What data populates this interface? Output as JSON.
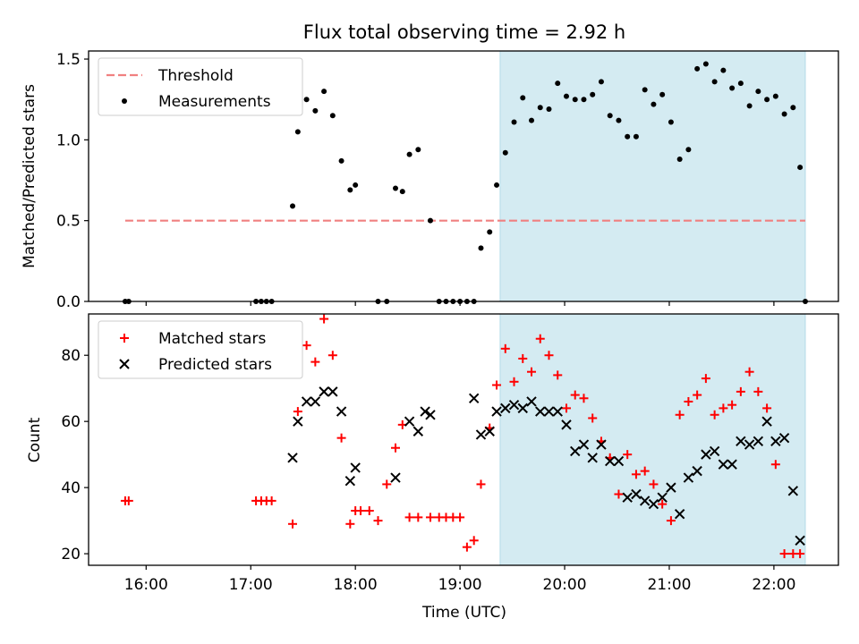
{
  "chart_data": [
    {
      "type": "scatter",
      "title": "Flux total observing time = 2.92 h",
      "xlabel": "",
      "ylabel": "Matched/Predicted stars",
      "xlim": [
        "15:27",
        "22:37"
      ],
      "ylim": [
        0,
        1.55
      ],
      "yticks": [
        "0.0",
        "0.5",
        "1.0",
        "1.5"
      ],
      "legend_position": "upper-left",
      "shaded_span": {
        "x_start": "19:23",
        "x_end": "22:18",
        "color": "#add8e6"
      },
      "threshold": {
        "name": "Threshold",
        "value": 0.5,
        "x_start": "15:48",
        "x_end": "22:18",
        "color": "#f08080"
      },
      "series": [
        {
          "name": "Measurements",
          "marker": "dot",
          "color": "#000000",
          "x": [
            "15:48",
            "15:50",
            "17:03",
            "17:06",
            "17:09",
            "17:12",
            "17:24",
            "17:27",
            "17:32",
            "17:37",
            "17:42",
            "17:47",
            "17:52",
            "17:57",
            "18:00",
            "18:13",
            "18:18",
            "18:23",
            "18:27",
            "18:31",
            "18:36",
            "18:43",
            "18:48",
            "18:52",
            "18:56",
            "19:00",
            "19:04",
            "19:08",
            "19:12",
            "19:17",
            "19:21",
            "19:26",
            "19:31",
            "19:36",
            "19:41",
            "19:46",
            "19:51",
            "19:56",
            "20:01",
            "20:06",
            "20:11",
            "20:16",
            "20:21",
            "20:26",
            "20:31",
            "20:36",
            "20:41",
            "20:46",
            "20:51",
            "20:56",
            "21:01",
            "21:06",
            "21:11",
            "21:16",
            "21:21",
            "21:26",
            "21:31",
            "21:36",
            "21:41",
            "21:46",
            "21:51",
            "21:56",
            "22:01",
            "22:06",
            "22:11",
            "22:15",
            "22:18"
          ],
          "y": [
            0.0,
            0.0,
            0.0,
            0.0,
            0.0,
            0.0,
            0.59,
            1.05,
            1.25,
            1.18,
            1.3,
            1.15,
            0.87,
            0.69,
            0.72,
            0.0,
            0.0,
            0.7,
            0.68,
            0.91,
            0.94,
            0.5,
            0.0,
            0.0,
            0.0,
            0.0,
            0.0,
            0.0,
            0.33,
            0.43,
            0.72,
            0.92,
            1.11,
            1.26,
            1.12,
            1.2,
            1.19,
            1.35,
            1.27,
            1.25,
            1.25,
            1.28,
            1.36,
            1.15,
            1.12,
            1.02,
            1.02,
            1.31,
            1.22,
            1.28,
            1.11,
            0.88,
            0.94,
            1.44,
            1.47,
            1.36,
            1.43,
            1.32,
            1.35,
            1.21,
            1.3,
            1.25,
            1.27,
            1.16,
            1.2,
            0.83,
            0.0
          ]
        }
      ]
    },
    {
      "type": "scatter",
      "title": "",
      "xlabel": "Time (UTC)",
      "ylabel": "Count",
      "xlim": [
        "15:27",
        "22:37"
      ],
      "ylim": [
        16.5,
        92.5
      ],
      "yticks": [
        "20",
        "40",
        "60",
        "80"
      ],
      "xticks": [
        "16:00",
        "17:00",
        "18:00",
        "19:00",
        "20:00",
        "21:00",
        "22:00"
      ],
      "legend_position": "upper-left",
      "shaded_span": {
        "x_start": "19:23",
        "x_end": "22:18",
        "color": "#add8e6"
      },
      "series": [
        {
          "name": "Matched stars",
          "marker": "plus",
          "color": "#ff0000",
          "x": [
            "15:48",
            "15:50",
            "17:03",
            "17:06",
            "17:09",
            "17:12",
            "17:24",
            "17:27",
            "17:32",
            "17:37",
            "17:42",
            "17:47",
            "17:52",
            "17:57",
            "18:00",
            "18:03",
            "18:08",
            "18:13",
            "18:18",
            "18:23",
            "18:27",
            "18:31",
            "18:36",
            "18:43",
            "18:48",
            "18:52",
            "18:56",
            "19:00",
            "19:04",
            "19:08",
            "19:12",
            "19:17",
            "19:21",
            "19:26",
            "19:31",
            "19:36",
            "19:41",
            "19:46",
            "19:51",
            "19:56",
            "20:01",
            "20:06",
            "20:11",
            "20:16",
            "20:21",
            "20:26",
            "20:31",
            "20:36",
            "20:41",
            "20:46",
            "20:51",
            "20:56",
            "21:01",
            "21:06",
            "21:11",
            "21:16",
            "21:21",
            "21:26",
            "21:31",
            "21:36",
            "21:41",
            "21:46",
            "21:51",
            "21:56",
            "22:01",
            "22:06",
            "22:11",
            "22:15"
          ],
          "y": [
            36,
            36,
            36,
            36,
            36,
            36,
            29,
            63,
            83,
            78,
            91,
            80,
            55,
            29,
            33,
            33,
            33,
            30,
            41,
            52,
            59,
            31,
            31,
            31,
            31,
            31,
            31,
            31,
            22,
            24,
            41,
            58,
            71,
            82,
            72,
            79,
            75,
            85,
            80,
            74,
            64,
            68,
            67,
            61,
            54,
            49,
            38,
            50,
            44,
            45,
            41,
            35,
            30,
            62,
            66,
            68,
            73,
            62,
            64,
            65,
            69,
            75,
            69,
            64,
            47,
            20,
            20,
            20
          ],
          "note_y_last": "20"
        },
        {
          "name": "Predicted stars",
          "marker": "x",
          "color": "#000000",
          "x": [
            "17:24",
            "17:27",
            "17:32",
            "17:37",
            "17:42",
            "17:47",
            "17:52",
            "17:57",
            "18:00",
            "18:23",
            "18:31",
            "18:36",
            "18:40",
            "18:43",
            "19:08",
            "19:12",
            "19:17",
            "19:21",
            "19:26",
            "19:31",
            "19:36",
            "19:41",
            "19:46",
            "19:51",
            "19:56",
            "20:01",
            "20:06",
            "20:11",
            "20:16",
            "20:21",
            "20:26",
            "20:31",
            "20:36",
            "20:41",
            "20:46",
            "20:51",
            "20:56",
            "21:01",
            "21:06",
            "21:11",
            "21:16",
            "21:21",
            "21:26",
            "21:31",
            "21:36",
            "21:41",
            "21:46",
            "21:51",
            "21:56",
            "22:01",
            "22:06",
            "22:11",
            "22:15"
          ],
          "y": [
            49,
            60,
            66,
            66,
            69,
            69,
            63,
            42,
            46,
            43,
            60,
            57,
            63,
            62,
            67,
            56,
            57,
            63,
            64,
            65,
            64,
            66,
            63,
            63,
            63,
            59,
            51,
            53,
            49,
            53,
            48,
            48,
            37,
            38,
            36,
            35,
            37,
            40,
            32,
            43,
            45,
            50,
            51,
            47,
            47,
            54,
            53,
            54,
            60,
            54,
            55,
            39,
            24
          ]
        }
      ]
    }
  ]
}
